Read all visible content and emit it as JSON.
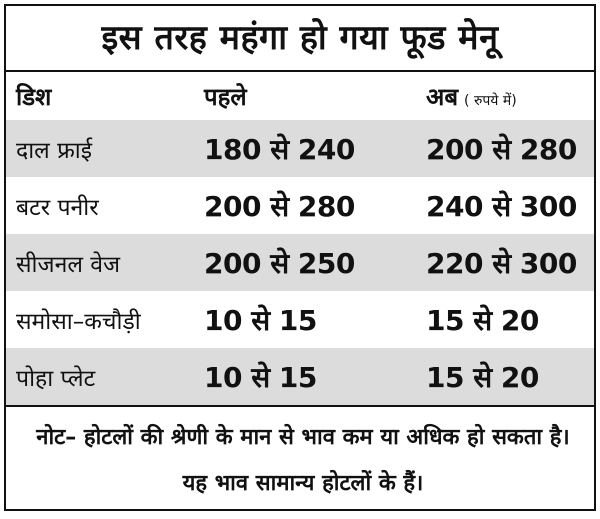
{
  "title": "इस तरह महंगा हो गया फूड मेनू",
  "headers": {
    "dish": "डिश",
    "before": "पहले",
    "now": "अब",
    "unit": "( रुपये में)"
  },
  "rows": [
    {
      "dish": "दाल फ्राई",
      "before": "180 से 240",
      "now": "200 से 280"
    },
    {
      "dish": "बटर पनीर",
      "before": "200 से 280",
      "now": "240 से 300"
    },
    {
      "dish": "सीजनल वेज",
      "before": "200 से 250",
      "now": "220 से 300"
    },
    {
      "dish": "समोसा–कचौड़ी",
      "before": "10 से 15",
      "now": "15 से 20"
    },
    {
      "dish": "पोहा प्लेट",
      "before": "10 से 15",
      "now": "15 से 20"
    }
  ],
  "note": "नोट– होटलों की श्रेणी के मान से भाव कम या अधिक हो सकता है। यह भाव सामान्य होटलों के हैं।",
  "colors": {
    "row_shade": "#dcdcdc",
    "border": "#111111"
  }
}
